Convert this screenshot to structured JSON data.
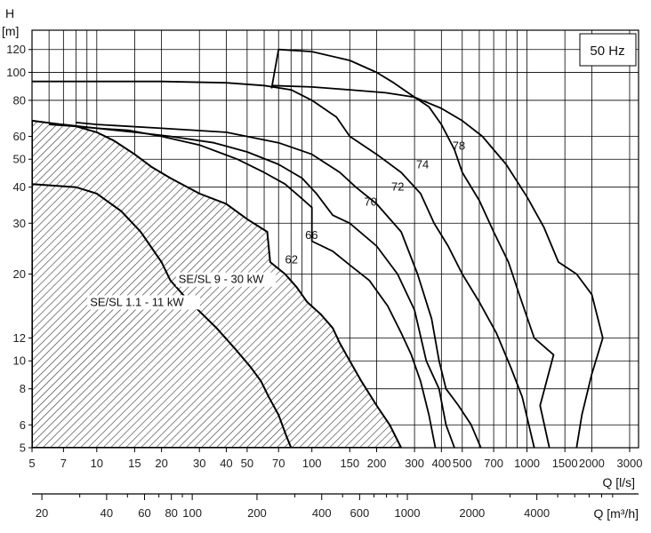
{
  "chart_data": {
    "type": "line",
    "title": "",
    "y_axis": {
      "label_top": "H",
      "label_unit": "[m]",
      "scale": "log",
      "range": [
        5,
        140
      ],
      "ticks": [
        5,
        6,
        8,
        10,
        12,
        20,
        30,
        40,
        50,
        60,
        80,
        100,
        120
      ]
    },
    "x_axis": {
      "label": "Q [l/s]",
      "scale": "log",
      "range": [
        5,
        3300
      ],
      "ticks": [
        {
          "v": 5,
          "t": "5"
        },
        {
          "v": 7,
          "t": "7"
        },
        {
          "v": 10,
          "t": "10"
        },
        {
          "v": 15,
          "t": "15"
        },
        {
          "v": 20,
          "t": "20"
        },
        {
          "v": 30,
          "t": "30"
        },
        {
          "v": 40,
          "t": "40"
        },
        {
          "v": 50,
          "t": "50"
        },
        {
          "v": 70,
          "t": "70"
        },
        {
          "v": 100,
          "t": "100"
        },
        {
          "v": 150,
          "t": "150"
        },
        {
          "v": 200,
          "t": "200"
        },
        {
          "v": 300,
          "t": "300"
        },
        {
          "v": 400,
          "t": "400"
        },
        {
          "v": 500,
          "t": "500"
        },
        {
          "v": 700,
          "t": "700"
        },
        {
          "v": 1000,
          "t": "1000"
        },
        {
          "v": 1500,
          "t": "1500"
        },
        {
          "v": 2000,
          "t": "2000"
        },
        {
          "v": 3000,
          "t": "3000"
        }
      ],
      "grid_lines": [
        6,
        7,
        8,
        9,
        10,
        15,
        20,
        30,
        40,
        50,
        60,
        70,
        80,
        90,
        100,
        150,
        200,
        300,
        400,
        500,
        600,
        700,
        800,
        900,
        1000,
        1500,
        2000,
        3000
      ]
    },
    "x2_axis": {
      "label": "Q [m³/h]",
      "scale": "log",
      "ticks": [
        {
          "v": 20,
          "t": "20"
        },
        {
          "v": 40,
          "t": "40"
        },
        {
          "v": 60,
          "t": "60"
        },
        {
          "v": 80,
          "t": "80"
        },
        {
          "v": 100,
          "t": "100"
        },
        {
          "v": 200,
          "t": "200"
        },
        {
          "v": 400,
          "t": "400"
        },
        {
          "v": 600,
          "t": "600"
        },
        {
          "v": 1000,
          "t": "1000"
        },
        {
          "v": 2000,
          "t": "2000"
        },
        {
          "v": 4000,
          "t": "4000"
        }
      ],
      "minor_ticks": [
        30,
        50,
        70,
        90,
        300,
        500,
        700,
        800,
        900,
        3000,
        5000,
        6000,
        7000,
        8000,
        9000
      ]
    },
    "legend_box": "50 Hz",
    "grid": true,
    "regions": [
      {
        "name": "SE/SL 1.1 - 11 kW",
        "label_at": [
          9.3,
          15.5
        ],
        "boundary": [
          [
            5,
            41
          ],
          [
            8,
            40
          ],
          [
            10,
            38
          ],
          [
            13,
            33
          ],
          [
            16,
            28
          ],
          [
            20,
            22
          ],
          [
            22,
            19
          ],
          [
            26,
            16.5
          ],
          [
            31,
            14.5
          ],
          [
            36,
            13
          ],
          [
            44,
            11
          ],
          [
            52,
            9.5
          ],
          [
            58,
            8.5
          ],
          [
            63,
            7.5
          ],
          [
            70,
            6.5
          ],
          [
            76,
            5.5
          ],
          [
            80,
            5
          ]
        ]
      },
      {
        "name": "SE/SL 9 - 30 kW",
        "label_at": [
          24,
          18.6
        ],
        "boundary": [
          [
            5,
            68
          ],
          [
            8,
            65
          ],
          [
            10,
            62
          ],
          [
            12,
            58
          ],
          [
            15,
            52
          ],
          [
            18,
            47
          ],
          [
            22,
            43
          ],
          [
            30,
            38
          ],
          [
            40,
            35
          ],
          [
            50,
            31
          ],
          [
            62,
            28
          ],
          [
            64,
            22
          ],
          [
            75,
            20
          ],
          [
            85,
            18
          ],
          [
            95,
            16
          ],
          [
            110,
            14.5
          ],
          [
            125,
            13
          ],
          [
            135,
            11.5
          ],
          [
            150,
            10
          ],
          [
            170,
            8.5
          ],
          [
            200,
            7
          ],
          [
            230,
            6
          ],
          [
            260,
            5
          ]
        ]
      }
    ],
    "series": [
      {
        "name": "62",
        "label_at": [
          75,
          21.8
        ],
        "points": [
          [
            6,
            66
          ],
          [
            8,
            65
          ],
          [
            10,
            64
          ],
          [
            14,
            63
          ],
          [
            20,
            60
          ],
          [
            30,
            56
          ],
          [
            45,
            50
          ],
          [
            60,
            45
          ],
          [
            75,
            41
          ],
          [
            88,
            37
          ],
          [
            100,
            34
          ],
          [
            100,
            26
          ],
          [
            125,
            24
          ],
          [
            150,
            21.5
          ],
          [
            185,
            19
          ],
          [
            225,
            15.5
          ],
          [
            260,
            12.5
          ],
          [
            290,
            10.5
          ],
          [
            320,
            8.5
          ],
          [
            350,
            6.5
          ],
          [
            375,
            5
          ]
        ]
      },
      {
        "name": "66",
        "label_at": [
          93,
          26.5
        ],
        "points": [
          [
            7,
            66
          ],
          [
            10,
            64
          ],
          [
            15,
            62
          ],
          [
            22,
            60
          ],
          [
            35,
            57
          ],
          [
            50,
            53
          ],
          [
            70,
            48
          ],
          [
            90,
            43
          ],
          [
            105,
            38
          ],
          [
            125,
            32
          ],
          [
            150,
            30
          ],
          [
            200,
            25
          ],
          [
            250,
            20
          ],
          [
            300,
            15
          ],
          [
            340,
            10
          ],
          [
            390,
            8
          ],
          [
            420,
            6
          ],
          [
            460,
            5
          ]
        ]
      },
      {
        "name": "70",
        "label_at": [
          175,
          34.5
        ],
        "points": [
          [
            8,
            67
          ],
          [
            10,
            66
          ],
          [
            20,
            64
          ],
          [
            40,
            62
          ],
          [
            70,
            57
          ],
          [
            100,
            52
          ],
          [
            135,
            45
          ],
          [
            160,
            40
          ],
          [
            200,
            35
          ],
          [
            260,
            28
          ],
          [
            310,
            20
          ],
          [
            360,
            14
          ],
          [
            390,
            10
          ],
          [
            420,
            8
          ],
          [
            480,
            7
          ],
          [
            550,
            6
          ],
          [
            610,
            5
          ]
        ]
      },
      {
        "name": "72",
        "label_at": [
          234,
          39
        ],
        "points": [
          [
            5,
            93
          ],
          [
            20,
            93
          ],
          [
            40,
            92
          ],
          [
            60,
            90
          ],
          [
            80,
            87
          ],
          [
            100,
            80
          ],
          [
            130,
            70
          ],
          [
            150,
            60
          ],
          [
            200,
            52
          ],
          [
            260,
            45
          ],
          [
            320,
            38
          ],
          [
            370,
            30
          ],
          [
            430,
            25
          ],
          [
            500,
            20
          ],
          [
            600,
            16
          ],
          [
            720,
            12.5
          ],
          [
            840,
            9.5
          ],
          [
            950,
            7.5
          ],
          [
            1080,
            5
          ]
        ]
      },
      {
        "name": "74",
        "label_at": [
          305,
          46.5
        ],
        "points": [
          [
            65,
            88
          ],
          [
            70,
            120
          ],
          [
            100,
            118
          ],
          [
            150,
            110
          ],
          [
            200,
            100
          ],
          [
            240,
            92
          ],
          [
            300,
            82
          ],
          [
            350,
            76
          ],
          [
            400,
            66
          ],
          [
            460,
            54
          ],
          [
            500,
            45
          ],
          [
            600,
            36
          ],
          [
            700,
            28
          ],
          [
            820,
            22
          ],
          [
            920,
            17
          ],
          [
            1080,
            12
          ],
          [
            1330,
            10.5
          ],
          [
            1150,
            7
          ],
          [
            1270,
            5
          ]
        ]
      },
      {
        "name": "78",
        "label_at": [
          450,
          54
        ],
        "points": [
          [
            65,
            90
          ],
          [
            100,
            89
          ],
          [
            150,
            87
          ],
          [
            220,
            85
          ],
          [
            300,
            82
          ],
          [
            400,
            75
          ],
          [
            500,
            68
          ],
          [
            620,
            60
          ],
          [
            800,
            48
          ],
          [
            1000,
            37
          ],
          [
            1200,
            29
          ],
          [
            1400,
            22
          ],
          [
            1700,
            20
          ],
          [
            2000,
            17
          ],
          [
            2250,
            12
          ],
          [
            2000,
            9
          ],
          [
            1800,
            6.5
          ],
          [
            1700,
            5
          ]
        ]
      }
    ]
  }
}
